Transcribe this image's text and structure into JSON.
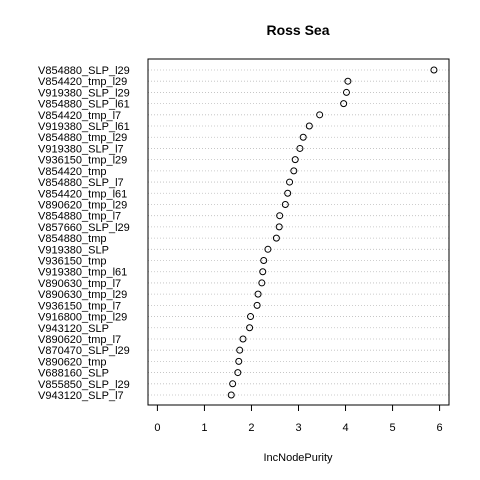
{
  "chart_data": {
    "type": "scatter",
    "title": "Ross Sea",
    "xlabel": "IncNodePurity",
    "ylabel": "",
    "xlim": [
      -0.2,
      6.2
    ],
    "xticks": [
      "0",
      "1",
      "2",
      "3",
      "4",
      "5",
      "6"
    ],
    "grid": true,
    "categories": [
      "V854880_SLP_l29",
      "V854420_tmp_l29",
      "V919380_SLP_l29",
      "V854880_SLP_l61",
      "V854420_tmp_l7",
      "V919380_SLP_l61",
      "V854880_tmp_l29",
      "V919380_SLP_l7",
      "V936150_tmp_l29",
      "V854420_tmp",
      "V854880_SLP_l7",
      "V854420_tmp_l61",
      "V890620_tmp_l29",
      "V854880_tmp_l7",
      "V857660_SLP_l29",
      "V854880_tmp",
      "V919380_SLP",
      "V936150_tmp",
      "V919380_tmp_l61",
      "V890630_tmp_l7",
      "V890630_tmp_l29",
      "V936150_tmp_l7",
      "V916800_tmp_l29",
      "V943120_SLP",
      "V890620_tmp_l7",
      "V870470_SLP_l29",
      "V890620_tmp",
      "V688160_SLP",
      "V855850_SLP_l29",
      "V943120_SLP_l7"
    ],
    "values": [
      5.88,
      4.05,
      4.02,
      3.96,
      3.45,
      3.23,
      3.1,
      3.03,
      2.93,
      2.9,
      2.81,
      2.77,
      2.72,
      2.6,
      2.59,
      2.53,
      2.35,
      2.26,
      2.24,
      2.22,
      2.14,
      2.12,
      1.98,
      1.96,
      1.82,
      1.75,
      1.73,
      1.71,
      1.6,
      1.57
    ]
  }
}
